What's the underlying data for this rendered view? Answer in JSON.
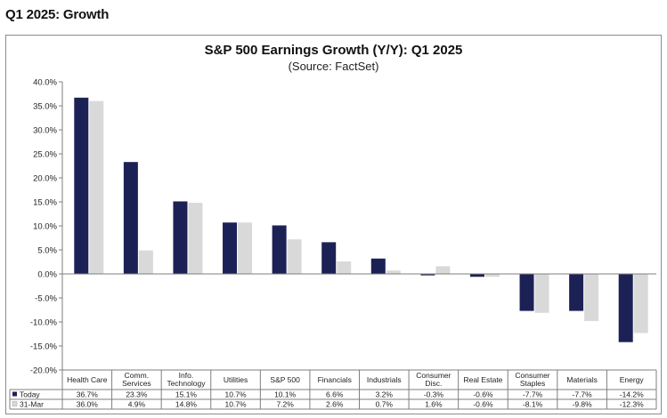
{
  "page_heading": "Q1 2025: Growth",
  "chart_data": {
    "type": "bar",
    "title": "S&P 500 Earnings Growth (Y/Y): Q1 2025",
    "subtitle": "(Source: FactSet)",
    "ylim": [
      -20,
      40
    ],
    "y_ticks": [
      "40.0%",
      "35.0%",
      "30.0%",
      "25.0%",
      "20.0%",
      "15.0%",
      "10.0%",
      "5.0%",
      "0.0%",
      "-5.0%",
      "-10.0%",
      "-15.0%",
      "-20.0%"
    ],
    "y_tick_values": [
      40,
      35,
      30,
      25,
      20,
      15,
      10,
      5,
      0,
      -5,
      -10,
      -15,
      -20
    ],
    "categories": [
      [
        "Health Care"
      ],
      [
        "Comm.",
        "Services"
      ],
      [
        "Info.",
        "Technology"
      ],
      [
        "Utilities"
      ],
      [
        "S&P 500"
      ],
      [
        "Financials"
      ],
      [
        "Industrials"
      ],
      [
        "Consumer",
        "Disc."
      ],
      [
        "Real Estate"
      ],
      [
        "Consumer",
        "Staples"
      ],
      [
        "Materials"
      ],
      [
        "Energy"
      ]
    ],
    "series": [
      {
        "name": "Today",
        "color": "#1c2155",
        "values": [
          36.7,
          23.3,
          15.1,
          10.7,
          10.1,
          6.6,
          3.2,
          -0.3,
          -0.6,
          -7.7,
          -7.7,
          -14.2
        ],
        "labels": [
          "36.7%",
          "23.3%",
          "15.1%",
          "10.7%",
          "10.1%",
          "6.6%",
          "3.2%",
          "-0.3%",
          "-0.6%",
          "-7.7%",
          "-7.7%",
          "-14.2%"
        ]
      },
      {
        "name": "31-Mar",
        "color": "#d9d9d9",
        "values": [
          36.0,
          4.9,
          14.8,
          10.7,
          7.2,
          2.6,
          0.7,
          1.6,
          -0.6,
          -8.1,
          -9.8,
          -12.3
        ],
        "labels": [
          "36.0%",
          "4.9%",
          "14.8%",
          "10.7%",
          "7.2%",
          "2.6%",
          "0.7%",
          "1.6%",
          "-0.6%",
          "-8.1%",
          "-9.8%",
          "-12.3%"
        ]
      }
    ],
    "grid": false,
    "legend": "data-table-left"
  }
}
